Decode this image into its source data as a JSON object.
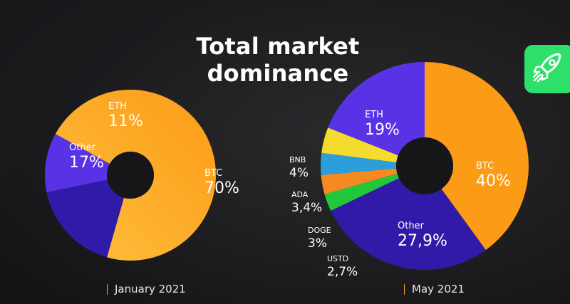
{
  "header": {
    "title_line1": "Total market",
    "title_line2": "dominance"
  },
  "colors": {
    "BTC": "#fb9b16",
    "BTC_light": "#ffbf3f",
    "ETH": "#5833e6",
    "Other": "#321aa8",
    "BNB": "#f4dc2e",
    "ADA": "#2d9edc",
    "DOGE": "#f58a22",
    "USTD": "#22c83a",
    "accent": "#2ee06a",
    "background": "#161618"
  },
  "icons": {
    "badge": "rocket-icon"
  },
  "chart_data": [
    {
      "type": "pie",
      "donut": true,
      "caption": "January 2021",
      "slices": [
        {
          "name": "BTC",
          "value": 70,
          "label": "70%"
        },
        {
          "name": "Other",
          "value": 17,
          "label": "17%"
        },
        {
          "name": "ETH",
          "value": 11,
          "label": "11%"
        }
      ]
    },
    {
      "type": "pie",
      "donut": true,
      "caption": "May 2021",
      "slices": [
        {
          "name": "BTC",
          "value": 40,
          "label": "40%"
        },
        {
          "name": "Other",
          "value": 27.9,
          "label": "27,9%"
        },
        {
          "name": "USTD",
          "value": 2.7,
          "label": "2,7%"
        },
        {
          "name": "DOGE",
          "value": 3,
          "label": "3%"
        },
        {
          "name": "ADA",
          "value": 3.4,
          "label": "3,4%"
        },
        {
          "name": "BNB",
          "value": 4,
          "label": "4%"
        },
        {
          "name": "ETH",
          "value": 19,
          "label": "19%"
        }
      ]
    }
  ]
}
